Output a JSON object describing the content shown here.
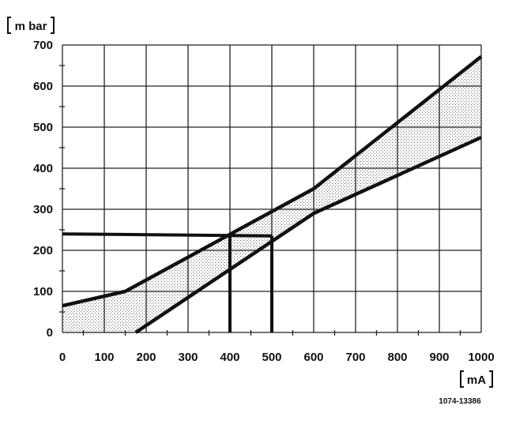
{
  "chart_data": {
    "type": "line",
    "xlabel": "mA",
    "ylabel": "m bar",
    "xlim": [
      0,
      1000
    ],
    "ylim": [
      0,
      700
    ],
    "x_ticks": [
      "0",
      "100",
      "200",
      "300",
      "400",
      "500",
      "600",
      "700",
      "800",
      "900",
      "1000"
    ],
    "y_ticks": [
      "0",
      "100",
      "200",
      "300",
      "400",
      "500",
      "600",
      "700"
    ],
    "grid": true,
    "series": [
      {
        "x": [
          0,
          150,
          600,
          1000
        ],
        "y": [
          65,
          100,
          350,
          672
        ]
      },
      {
        "x": [
          175,
          600,
          1000
        ],
        "y": [
          0,
          290,
          475
        ]
      }
    ],
    "reference_lines": {
      "y": 240,
      "x": [
        400,
        500
      ],
      "y_at_x": [
        240,
        235
      ]
    },
    "figure_code": "1074-13386"
  }
}
